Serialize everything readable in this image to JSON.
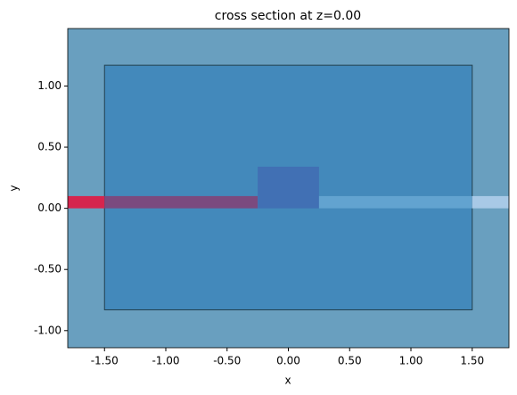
{
  "chart_data": {
    "type": "rect",
    "title": "cross section at z=0.00",
    "xlabel": "x",
    "ylabel": "y",
    "xlim": [
      -1.8,
      1.8
    ],
    "ylim": [
      -1.14,
      1.47
    ],
    "xticks": [
      {
        "value": -1.5,
        "label": "-1.50"
      },
      {
        "value": -1.0,
        "label": "-1.00"
      },
      {
        "value": -0.5,
        "label": "-0.50"
      },
      {
        "value": 0,
        "label": "0.00"
      },
      {
        "value": 0.5,
        "label": "0.50"
      },
      {
        "value": 1.0,
        "label": "1.00"
      },
      {
        "value": 1.5,
        "label": "1.50"
      }
    ],
    "yticks": [
      {
        "value": -1.0,
        "label": "-1.00"
      },
      {
        "value": -0.5,
        "label": "-0.50"
      },
      {
        "value": 0,
        "label": "0.00"
      },
      {
        "value": 0.5,
        "label": "0.50"
      },
      {
        "value": 1.0,
        "label": "1.00"
      }
    ],
    "background": "#699fbf",
    "shapes": [
      {
        "x": [
          -1.5,
          1.5
        ],
        "y": [
          -0.83,
          1.17
        ],
        "color": "#4389bb",
        "edge": "#22404f"
      },
      {
        "x": [
          -1.8,
          -1.5
        ],
        "y": [
          0,
          0.1
        ],
        "color": "#d5254e"
      },
      {
        "x": [
          -1.5,
          -0.25
        ],
        "y": [
          0,
          0.1
        ],
        "color": "#7b4a7f"
      },
      {
        "x": [
          -0.25,
          0.25
        ],
        "y": [
          0,
          0.34
        ],
        "color": "#4170b4"
      },
      {
        "x": [
          0.25,
          1.5
        ],
        "y": [
          0,
          0.1
        ],
        "color": "#62a3d0"
      },
      {
        "x": [
          1.5,
          1.8
        ],
        "y": [
          0,
          0.1
        ],
        "color": "#a8c9e6"
      }
    ]
  }
}
